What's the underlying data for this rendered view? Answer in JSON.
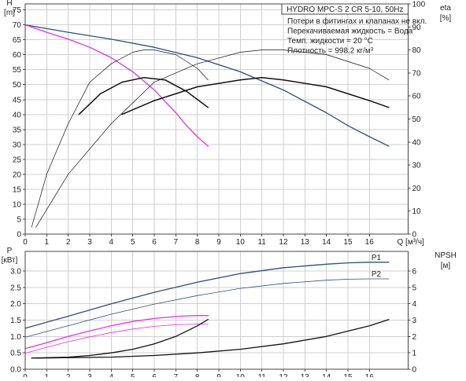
{
  "chart_data": [
    {
      "type": "line",
      "panel": "top",
      "title": "HYDRO MPC-S 2 CR 5-10, 50Hz",
      "notes": [
        "Потери в фитингах и клапанах не вкл.",
        "Перекачиваемая жидкость = Вода",
        "Темп. жидкости = 20 °C",
        "Плотность = 998.2 кг/м³"
      ],
      "y_left_label": "H",
      "y_left_unit": "[m]",
      "y_right_label": "eta",
      "y_right_unit": "[%]",
      "x_label": "Q [м³/ч]",
      "x_ticks": [
        "0",
        "1",
        "2",
        "3",
        "4",
        "5",
        "6",
        "7",
        "8",
        "9",
        "10",
        "11",
        "12",
        "13",
        "14",
        "15",
        "16"
      ],
      "y_left_ticks": [
        "0",
        "5",
        "10",
        "15",
        "20",
        "25",
        "30",
        "35",
        "40",
        "45",
        "50",
        "55",
        "60",
        "65",
        "70",
        "75"
      ],
      "y_right_ticks": [
        "0",
        "10",
        "20",
        "30",
        "40",
        "50",
        "60",
        "70",
        "80",
        "90",
        "100"
      ],
      "xlim": [
        0,
        17.8
      ],
      "ylim": [
        0,
        77
      ],
      "y_right_lim": [
        0,
        100
      ],
      "grid": true,
      "colors": {
        "two_pumps": "#2b4f7a",
        "one_pump": "#e632e6",
        "efficiency": "#111111"
      },
      "series": [
        {
          "axis": "left",
          "color": "#2b4f7a",
          "width": 1.3,
          "x": [
            0,
            2,
            4,
            6,
            8,
            10,
            12,
            14,
            15,
            16,
            16.9
          ],
          "y": [
            70,
            67.5,
            65.2,
            62.5,
            59,
            54.3,
            48.2,
            40.6,
            36.3,
            32.6,
            29.4
          ]
        },
        {
          "axis": "left",
          "color": "#e632e6",
          "width": 1.3,
          "x": [
            0,
            1,
            2,
            3,
            4,
            5,
            6,
            7,
            7.5,
            8,
            8.5
          ],
          "y": [
            70,
            67.5,
            65.2,
            62.5,
            59,
            54.3,
            48.2,
            40.6,
            36.3,
            32.6,
            29.4
          ]
        },
        {
          "axis": "right",
          "color": "#111111",
          "width": 0.7,
          "x": [
            0.3,
            1,
            2,
            3,
            4,
            5,
            5.5,
            6,
            7,
            8,
            8.5
          ],
          "y": [
            3,
            26,
            48,
            66,
            74,
            79,
            80,
            80,
            78,
            72,
            67
          ]
        },
        {
          "axis": "right",
          "color": "#111111",
          "width": 0.7,
          "x": [
            0.5,
            2,
            4,
            6,
            8,
            10,
            11,
            12,
            14,
            16,
            16.9
          ],
          "y": [
            3,
            26,
            48,
            66,
            74,
            79,
            80,
            80,
            78,
            72,
            67
          ]
        },
        {
          "axis": "right",
          "color": "#111111",
          "width": 1.5,
          "x": [
            2.5,
            3.5,
            4.5,
            5.5,
            6.5,
            7.5,
            8.5
          ],
          "y": [
            52,
            61,
            66,
            68,
            67,
            62,
            55
          ]
        },
        {
          "axis": "right",
          "color": "#111111",
          "width": 1.5,
          "x": [
            4.5,
            6,
            8,
            10,
            11,
            12,
            14,
            16,
            16.9
          ],
          "y": [
            52,
            58,
            64,
            67,
            68,
            67,
            64,
            58,
            55
          ]
        }
      ]
    },
    {
      "type": "line",
      "panel": "bottom",
      "y_left_label": "P",
      "y_left_unit": "[кВт]",
      "y_right_label": "NPSH",
      "y_right_unit": "[м]",
      "x_ticks": [
        "0",
        "1",
        "2",
        "3",
        "4",
        "5",
        "6",
        "7",
        "8",
        "9",
        "10",
        "11",
        "12",
        "13",
        "14",
        "15",
        "16"
      ],
      "y_left_ticks": [
        "0.0",
        "0.5",
        "1.0",
        "1.5",
        "2.0",
        "2.5",
        "3.0"
      ],
      "y_right_ticks": [
        "0",
        "1",
        "2",
        "3",
        "4",
        "5",
        "6"
      ],
      "xlim": [
        0,
        17.8
      ],
      "ylim": [
        0,
        3.6
      ],
      "y_right_lim": [
        0,
        7.2
      ],
      "grid": true,
      "series": [
        {
          "name": "P1",
          "axis": "left",
          "color": "#2b4f7a",
          "width": 1.3,
          "x": [
            0,
            2,
            4,
            6,
            8,
            10,
            12,
            14,
            15,
            16,
            16.9
          ],
          "y": [
            1.25,
            1.62,
            2.0,
            2.35,
            2.66,
            2.92,
            3.1,
            3.21,
            3.25,
            3.27,
            3.27
          ]
        },
        {
          "name": "P2",
          "axis": "left",
          "color": "#2b4f7a",
          "width": 0.8,
          "x": [
            0,
            2,
            4,
            6,
            8,
            10,
            12,
            14,
            15,
            16,
            16.9
          ],
          "y": [
            0.98,
            1.33,
            1.68,
            1.99,
            2.25,
            2.47,
            2.62,
            2.72,
            2.75,
            2.76,
            2.76
          ]
        },
        {
          "axis": "left",
          "color": "#e632e6",
          "width": 1.3,
          "x": [
            0,
            1,
            2,
            3,
            4,
            5,
            6,
            7,
            7.5,
            8,
            8.5
          ],
          "y": [
            0.63,
            0.81,
            1.0,
            1.17,
            1.33,
            1.46,
            1.55,
            1.61,
            1.63,
            1.64,
            1.64
          ]
        },
        {
          "axis": "left",
          "color": "#e632e6",
          "width": 0.8,
          "x": [
            0,
            1,
            2,
            3,
            4,
            5,
            6,
            7,
            7.5,
            8,
            8.5
          ],
          "y": [
            0.49,
            0.67,
            0.84,
            0.99,
            1.12,
            1.23,
            1.31,
            1.36,
            1.37,
            1.38,
            1.38
          ]
        },
        {
          "axis": "right",
          "color": "#111111",
          "width": 1.3,
          "x": [
            0.3,
            2,
            3,
            4,
            5,
            6,
            7,
            8,
            8.5
          ],
          "y": [
            0.68,
            0.74,
            0.84,
            1.0,
            1.22,
            1.55,
            2.0,
            2.65,
            3.04
          ]
        },
        {
          "axis": "right",
          "color": "#111111",
          "width": 1.3,
          "x": [
            0.5,
            4,
            6,
            8,
            10,
            12,
            14,
            16,
            16.9
          ],
          "y": [
            0.68,
            0.74,
            0.84,
            1.0,
            1.22,
            1.55,
            2.0,
            2.65,
            3.04
          ]
        }
      ]
    }
  ]
}
